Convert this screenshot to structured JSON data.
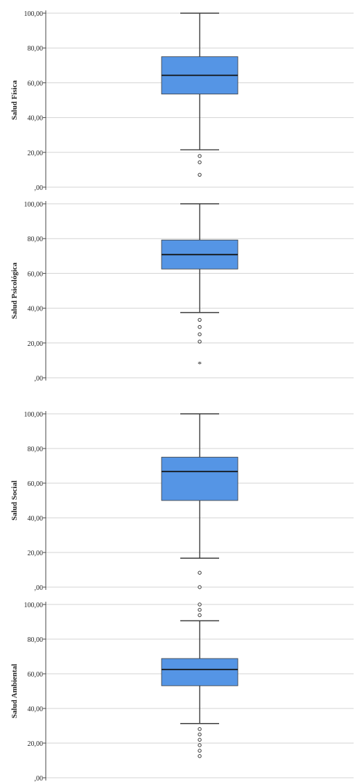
{
  "chart_data": [
    {
      "type": "boxplot",
      "ylabel": "Salud Física",
      "yticks": [
        "100,00",
        "80,00",
        "60,00",
        "40,00",
        "20,00",
        ",00"
      ],
      "ylim": [
        0,
        100
      ],
      "grid": true,
      "box": {
        "min": 21.5,
        "q1": 53.5,
        "median": 64.3,
        "q3": 75,
        "max": 100
      },
      "outliers": [
        17.9,
        14.3,
        7.1
      ],
      "extremes": []
    },
    {
      "type": "boxplot",
      "ylabel": "Salud Psicológica",
      "yticks": [
        "100,00",
        "80,00",
        "60,00",
        "40,00",
        "20,00",
        ",00"
      ],
      "ylim": [
        0,
        100
      ],
      "grid": true,
      "box": {
        "min": 37.5,
        "q1": 62.5,
        "median": 70.8,
        "q3": 79.2,
        "max": 100
      },
      "outliers": [
        33.3,
        29.2,
        25,
        20.8
      ],
      "extremes": [
        8.3
      ]
    },
    {
      "type": "boxplot",
      "ylabel": "Salud Social",
      "yticks": [
        "100,00",
        "80,00",
        "60,00",
        "40,00",
        "20,00",
        ",00"
      ],
      "ylim": [
        0,
        100
      ],
      "grid": true,
      "box": {
        "min": 16.7,
        "q1": 50,
        "median": 66.7,
        "q3": 75,
        "max": 100
      },
      "outliers": [
        8.3,
        0
      ],
      "extremes": []
    },
    {
      "type": "boxplot",
      "ylabel": "Salud Ambiental",
      "yticks": [
        "100,00",
        "80,00",
        "60,00",
        "40,00",
        "20,00",
        ",00"
      ],
      "ylim": [
        0,
        100
      ],
      "grid": true,
      "box": {
        "min": 31.3,
        "q1": 53.1,
        "median": 62.5,
        "q3": 68.8,
        "max": 90.6
      },
      "outliers": [
        100,
        96.9,
        93.8,
        28.1,
        25,
        21.9,
        18.8,
        15.6,
        12.5
      ],
      "extremes": []
    }
  ],
  "colors": {
    "box_fill": "#5595e5",
    "box_stroke": "#3a3a3a",
    "grid": "#d3d3d3",
    "axis": "#444444"
  }
}
